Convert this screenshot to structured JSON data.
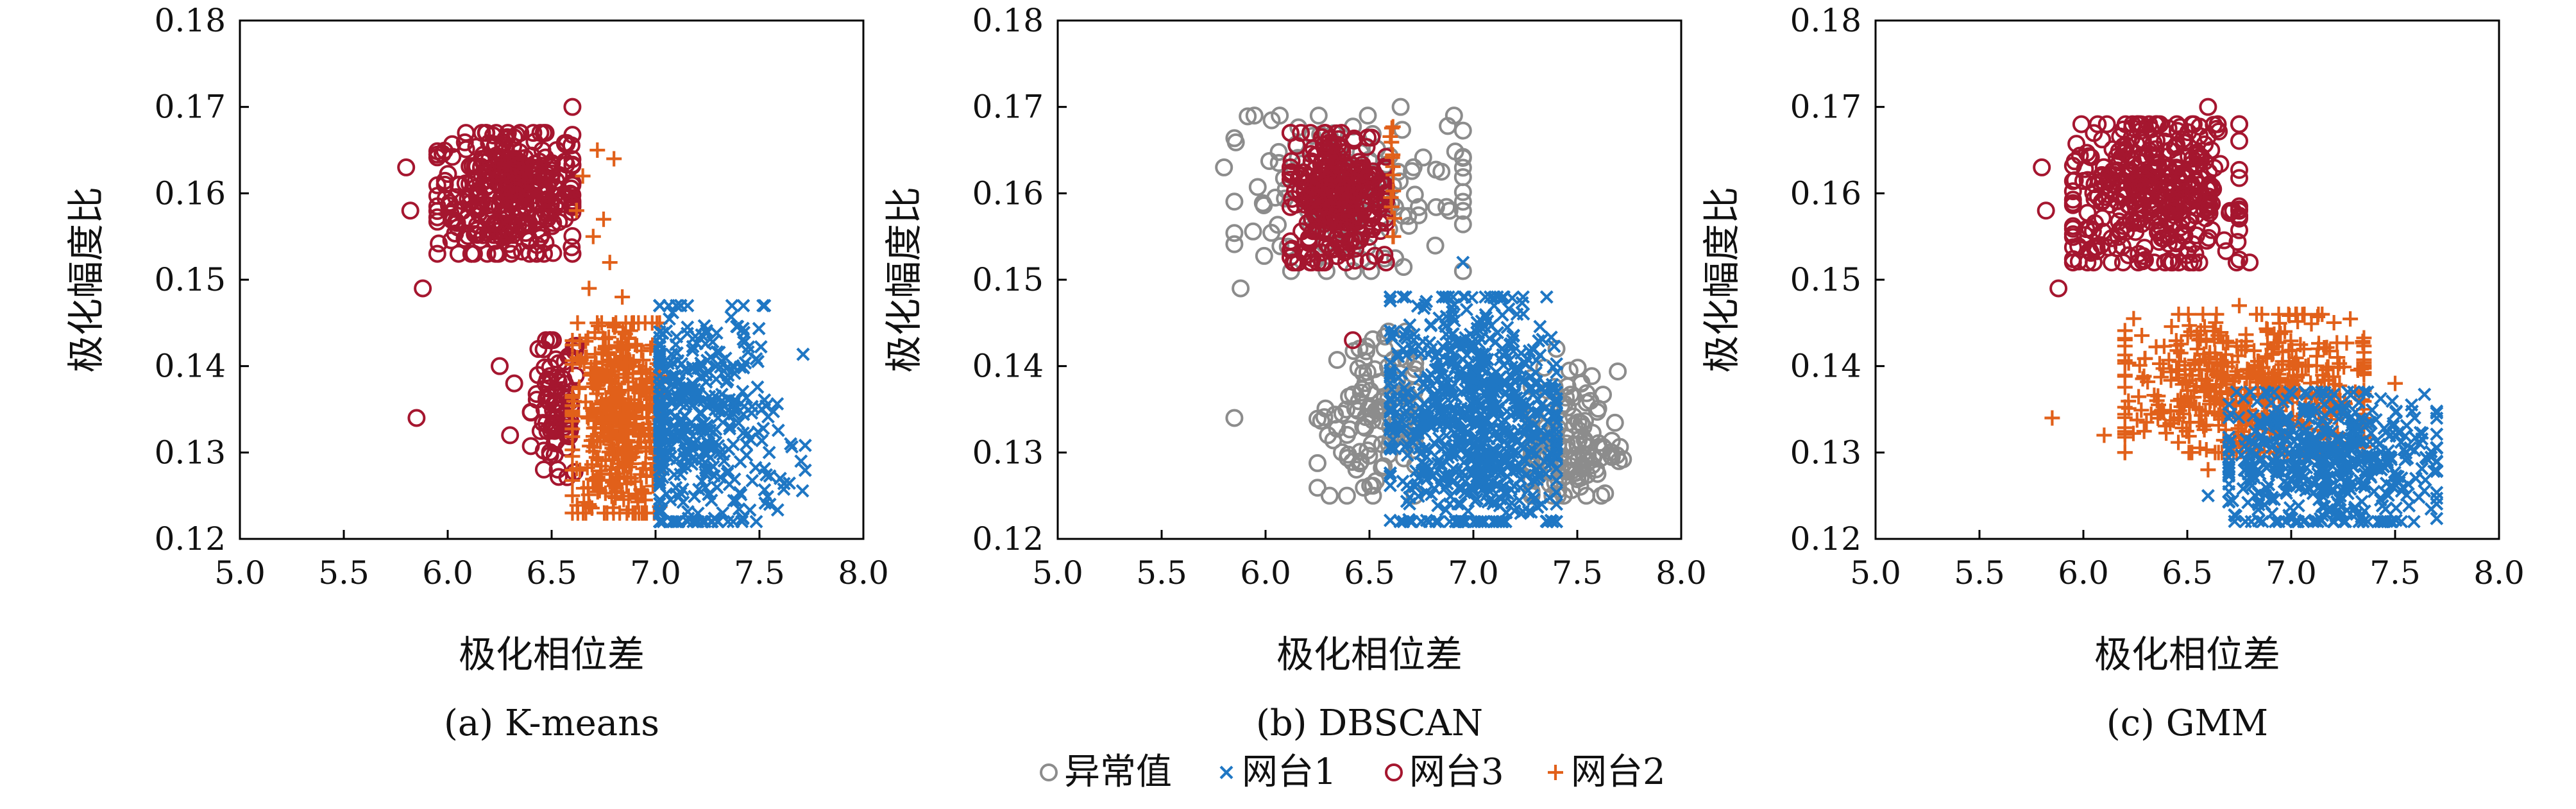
{
  "figure": {
    "legend": [
      {
        "label": "异常值",
        "marker": "circle",
        "color": "#8c8c8c"
      },
      {
        "label": "网台1",
        "marker": "x",
        "color": "#1f77c4"
      },
      {
        "label": "网台3",
        "marker": "circle",
        "color": "#a5162f"
      },
      {
        "label": "网台2",
        "marker": "plus",
        "color": "#e1601a"
      }
    ],
    "colors": {
      "outlier": "#8c8c8c",
      "net1": "#1f77c4",
      "net2": "#e1601a",
      "net3": "#a5162f"
    }
  },
  "chart_data": [
    {
      "type": "scatter",
      "caption": "(a) K-means",
      "xlabel": "极化相位差",
      "ylabel": "极化幅度比",
      "xlim": [
        5.0,
        8.0
      ],
      "ylim": [
        0.12,
        0.18
      ],
      "xticks": [
        "5.0",
        "5.5",
        "6.0",
        "6.5",
        "7.0",
        "7.5",
        "8.0"
      ],
      "yticks": [
        "0.12",
        "0.13",
        "0.14",
        "0.15",
        "0.16",
        "0.17",
        "0.18"
      ],
      "grid": false,
      "series": [
        {
          "name": "网台3",
          "marker": "circle",
          "color": "#a5162f",
          "clusters": [
            {
              "xmin": 5.95,
              "xmax": 6.6,
              "ymin": 0.153,
              "ymax": 0.167,
              "cx": 6.3,
              "cy": 0.16,
              "n": 340
            },
            {
              "xmin": 6.4,
              "xmax": 6.62,
              "ymin": 0.126,
              "ymax": 0.143,
              "cx": 6.52,
              "cy": 0.135,
              "n": 90
            }
          ],
          "points": [
            [
              5.8,
              0.163
            ],
            [
              5.82,
              0.158
            ],
            [
              5.88,
              0.149
            ],
            [
              5.85,
              0.134
            ],
            [
              6.3,
              0.132
            ],
            [
              6.32,
              0.138
            ],
            [
              6.6,
              0.17
            ],
            [
              6.25,
              0.14
            ]
          ]
        },
        {
          "name": "网台2",
          "marker": "plus",
          "color": "#e1601a",
          "clusters": [
            {
              "xmin": 6.6,
              "xmax": 7.02,
              "ymin": 0.123,
              "ymax": 0.145,
              "cx": 6.82,
              "cy": 0.134,
              "n": 450
            }
          ],
          "points": [
            [
              6.62,
              0.158
            ],
            [
              6.65,
              0.162
            ],
            [
              6.72,
              0.165
            ],
            [
              6.8,
              0.164
            ],
            [
              6.7,
              0.155
            ],
            [
              6.78,
              0.152
            ],
            [
              6.84,
              0.148
            ],
            [
              6.68,
              0.149
            ],
            [
              6.75,
              0.157
            ]
          ]
        },
        {
          "name": "网台1",
          "marker": "x",
          "color": "#1f77c4",
          "clusters": [
            {
              "xmin": 7.02,
              "xmax": 7.72,
              "ymin": 0.122,
              "ymax": 0.147,
              "cx": 7.2,
              "cy": 0.133,
              "n": 420
            }
          ],
          "points": [
            [
              7.6,
              0.127
            ],
            [
              7.7,
              0.129
            ],
            [
              7.55,
              0.124
            ],
            [
              7.65,
              0.131
            ],
            [
              7.1,
              0.147
            ]
          ]
        }
      ]
    },
    {
      "type": "scatter",
      "caption": "(b) DBSCAN",
      "xlabel": "极化相位差",
      "ylabel": "极化幅度比",
      "xlim": [
        5.0,
        8.0
      ],
      "ylim": [
        0.12,
        0.18
      ],
      "xticks": [
        "5.0",
        "5.5",
        "6.0",
        "6.5",
        "7.0",
        "7.5",
        "8.0"
      ],
      "yticks": [
        "0.12",
        "0.13",
        "0.14",
        "0.15",
        "0.16",
        "0.17",
        "0.18"
      ],
      "grid": false,
      "series": [
        {
          "name": "异常值",
          "marker": "circle",
          "color": "#8c8c8c",
          "clusters": [
            {
              "xmin": 5.85,
              "xmax": 6.95,
              "ymin": 0.151,
              "ymax": 0.169,
              "cx": 6.4,
              "cy": 0.16,
              "n": 140
            },
            {
              "xmin": 6.25,
              "xmax": 6.72,
              "ymin": 0.125,
              "ymax": 0.144,
              "cx": 6.5,
              "cy": 0.134,
              "n": 110
            },
            {
              "xmin": 7.28,
              "xmax": 7.72,
              "ymin": 0.125,
              "ymax": 0.14,
              "cx": 7.45,
              "cy": 0.131,
              "n": 130
            }
          ],
          "points": [
            [
              5.85,
              0.134
            ],
            [
              5.8,
              0.163
            ],
            [
              5.88,
              0.149
            ],
            [
              6.3,
              0.132
            ],
            [
              7.7,
              0.129
            ],
            [
              7.4,
              0.142
            ],
            [
              6.65,
              0.17
            ]
          ]
        },
        {
          "name": "网台3",
          "marker": "circle",
          "color": "#a5162f",
          "clusters": [
            {
              "xmin": 6.12,
              "xmax": 6.58,
              "ymin": 0.152,
              "ymax": 0.167,
              "cx": 6.35,
              "cy": 0.16,
              "n": 300
            }
          ],
          "points": [
            [
              6.42,
              0.143
            ]
          ]
        },
        {
          "name": "网台2",
          "marker": "plus",
          "color": "#e1601a",
          "clusters": [
            {
              "xmin": 6.6,
              "xmax": 6.62,
              "ymin": 0.155,
              "ymax": 0.168,
              "cx": 6.61,
              "cy": 0.161,
              "n": 14
            }
          ],
          "points": []
        },
        {
          "name": "网台1",
          "marker": "x",
          "color": "#1f77c4",
          "clusters": [
            {
              "xmin": 6.6,
              "xmax": 7.4,
              "ymin": 0.122,
              "ymax": 0.148,
              "cx": 7.0,
              "cy": 0.134,
              "n": 780
            }
          ],
          "points": [
            [
              6.95,
              0.152
            ],
            [
              7.1,
              0.147
            ]
          ]
        }
      ]
    },
    {
      "type": "scatter",
      "caption": "(c) GMM",
      "xlabel": "极化相位差",
      "ylabel": "极化幅度比",
      "xlim": [
        5.0,
        8.0
      ],
      "ylim": [
        0.12,
        0.18
      ],
      "xticks": [
        "5.0",
        "5.5",
        "6.0",
        "6.5",
        "7.0",
        "7.5",
        "8.0"
      ],
      "yticks": [
        "0.12",
        "0.13",
        "0.14",
        "0.15",
        "0.16",
        "0.17",
        "0.18"
      ],
      "grid": false,
      "series": [
        {
          "name": "网台3",
          "marker": "circle",
          "color": "#a5162f",
          "clusters": [
            {
              "xmin": 5.95,
              "xmax": 6.75,
              "ymin": 0.152,
              "ymax": 0.168,
              "cx": 6.35,
              "cy": 0.16,
              "n": 380
            }
          ],
          "points": [
            [
              5.8,
              0.163
            ],
            [
              5.82,
              0.158
            ],
            [
              5.88,
              0.149
            ],
            [
              6.8,
              0.152
            ],
            [
              6.6,
              0.17
            ]
          ]
        },
        {
          "name": "网台2",
          "marker": "plus",
          "color": "#e1601a",
          "clusters": [
            {
              "xmin": 6.2,
              "xmax": 7.35,
              "ymin": 0.13,
              "ymax": 0.146,
              "cx": 6.8,
              "cy": 0.137,
              "n": 520
            }
          ],
          "points": [
            [
              5.85,
              0.134
            ],
            [
              6.1,
              0.132
            ],
            [
              6.6,
              0.128
            ],
            [
              7.5,
              0.138
            ],
            [
              6.75,
              0.147
            ]
          ]
        },
        {
          "name": "网台1",
          "marker": "x",
          "color": "#1f77c4",
          "clusters": [
            {
              "xmin": 6.7,
              "xmax": 7.7,
              "ymin": 0.122,
              "ymax": 0.137,
              "cx": 7.15,
              "cy": 0.129,
              "n": 520
            }
          ],
          "points": [
            [
              7.7,
              0.129
            ],
            [
              7.6,
              0.127
            ],
            [
              6.6,
              0.125
            ]
          ]
        }
      ]
    }
  ]
}
